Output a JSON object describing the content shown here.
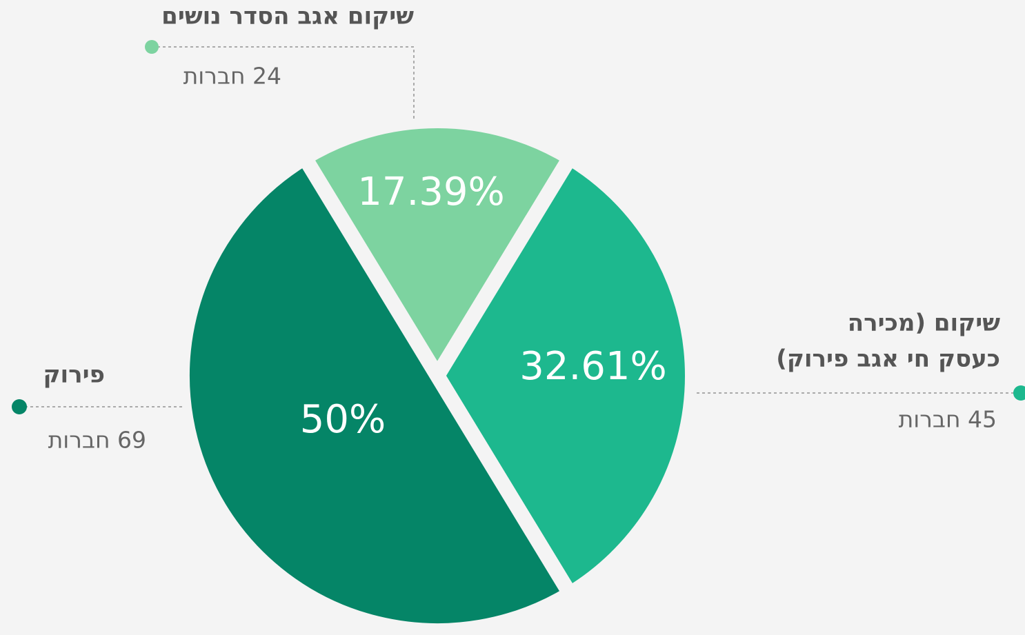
{
  "chart_data": {
    "type": "pie",
    "label_lines": [
      [
        "שיקום אגב הסדר נושים"
      ],
      [
        "שיקום (מכירה",
        "כעסק חי אגב פירוק)"
      ],
      [
        "פירוק"
      ]
    ],
    "values": [
      17.39,
      32.61,
      50
    ],
    "value_labels": [
      "17.39%",
      "32.61%",
      "50%"
    ],
    "count_labels": [
      "24 חברות",
      "45 חברות",
      "69 חברות"
    ],
    "colors": [
      "#7dd3a0",
      "#1db88e",
      "#058567"
    ]
  }
}
